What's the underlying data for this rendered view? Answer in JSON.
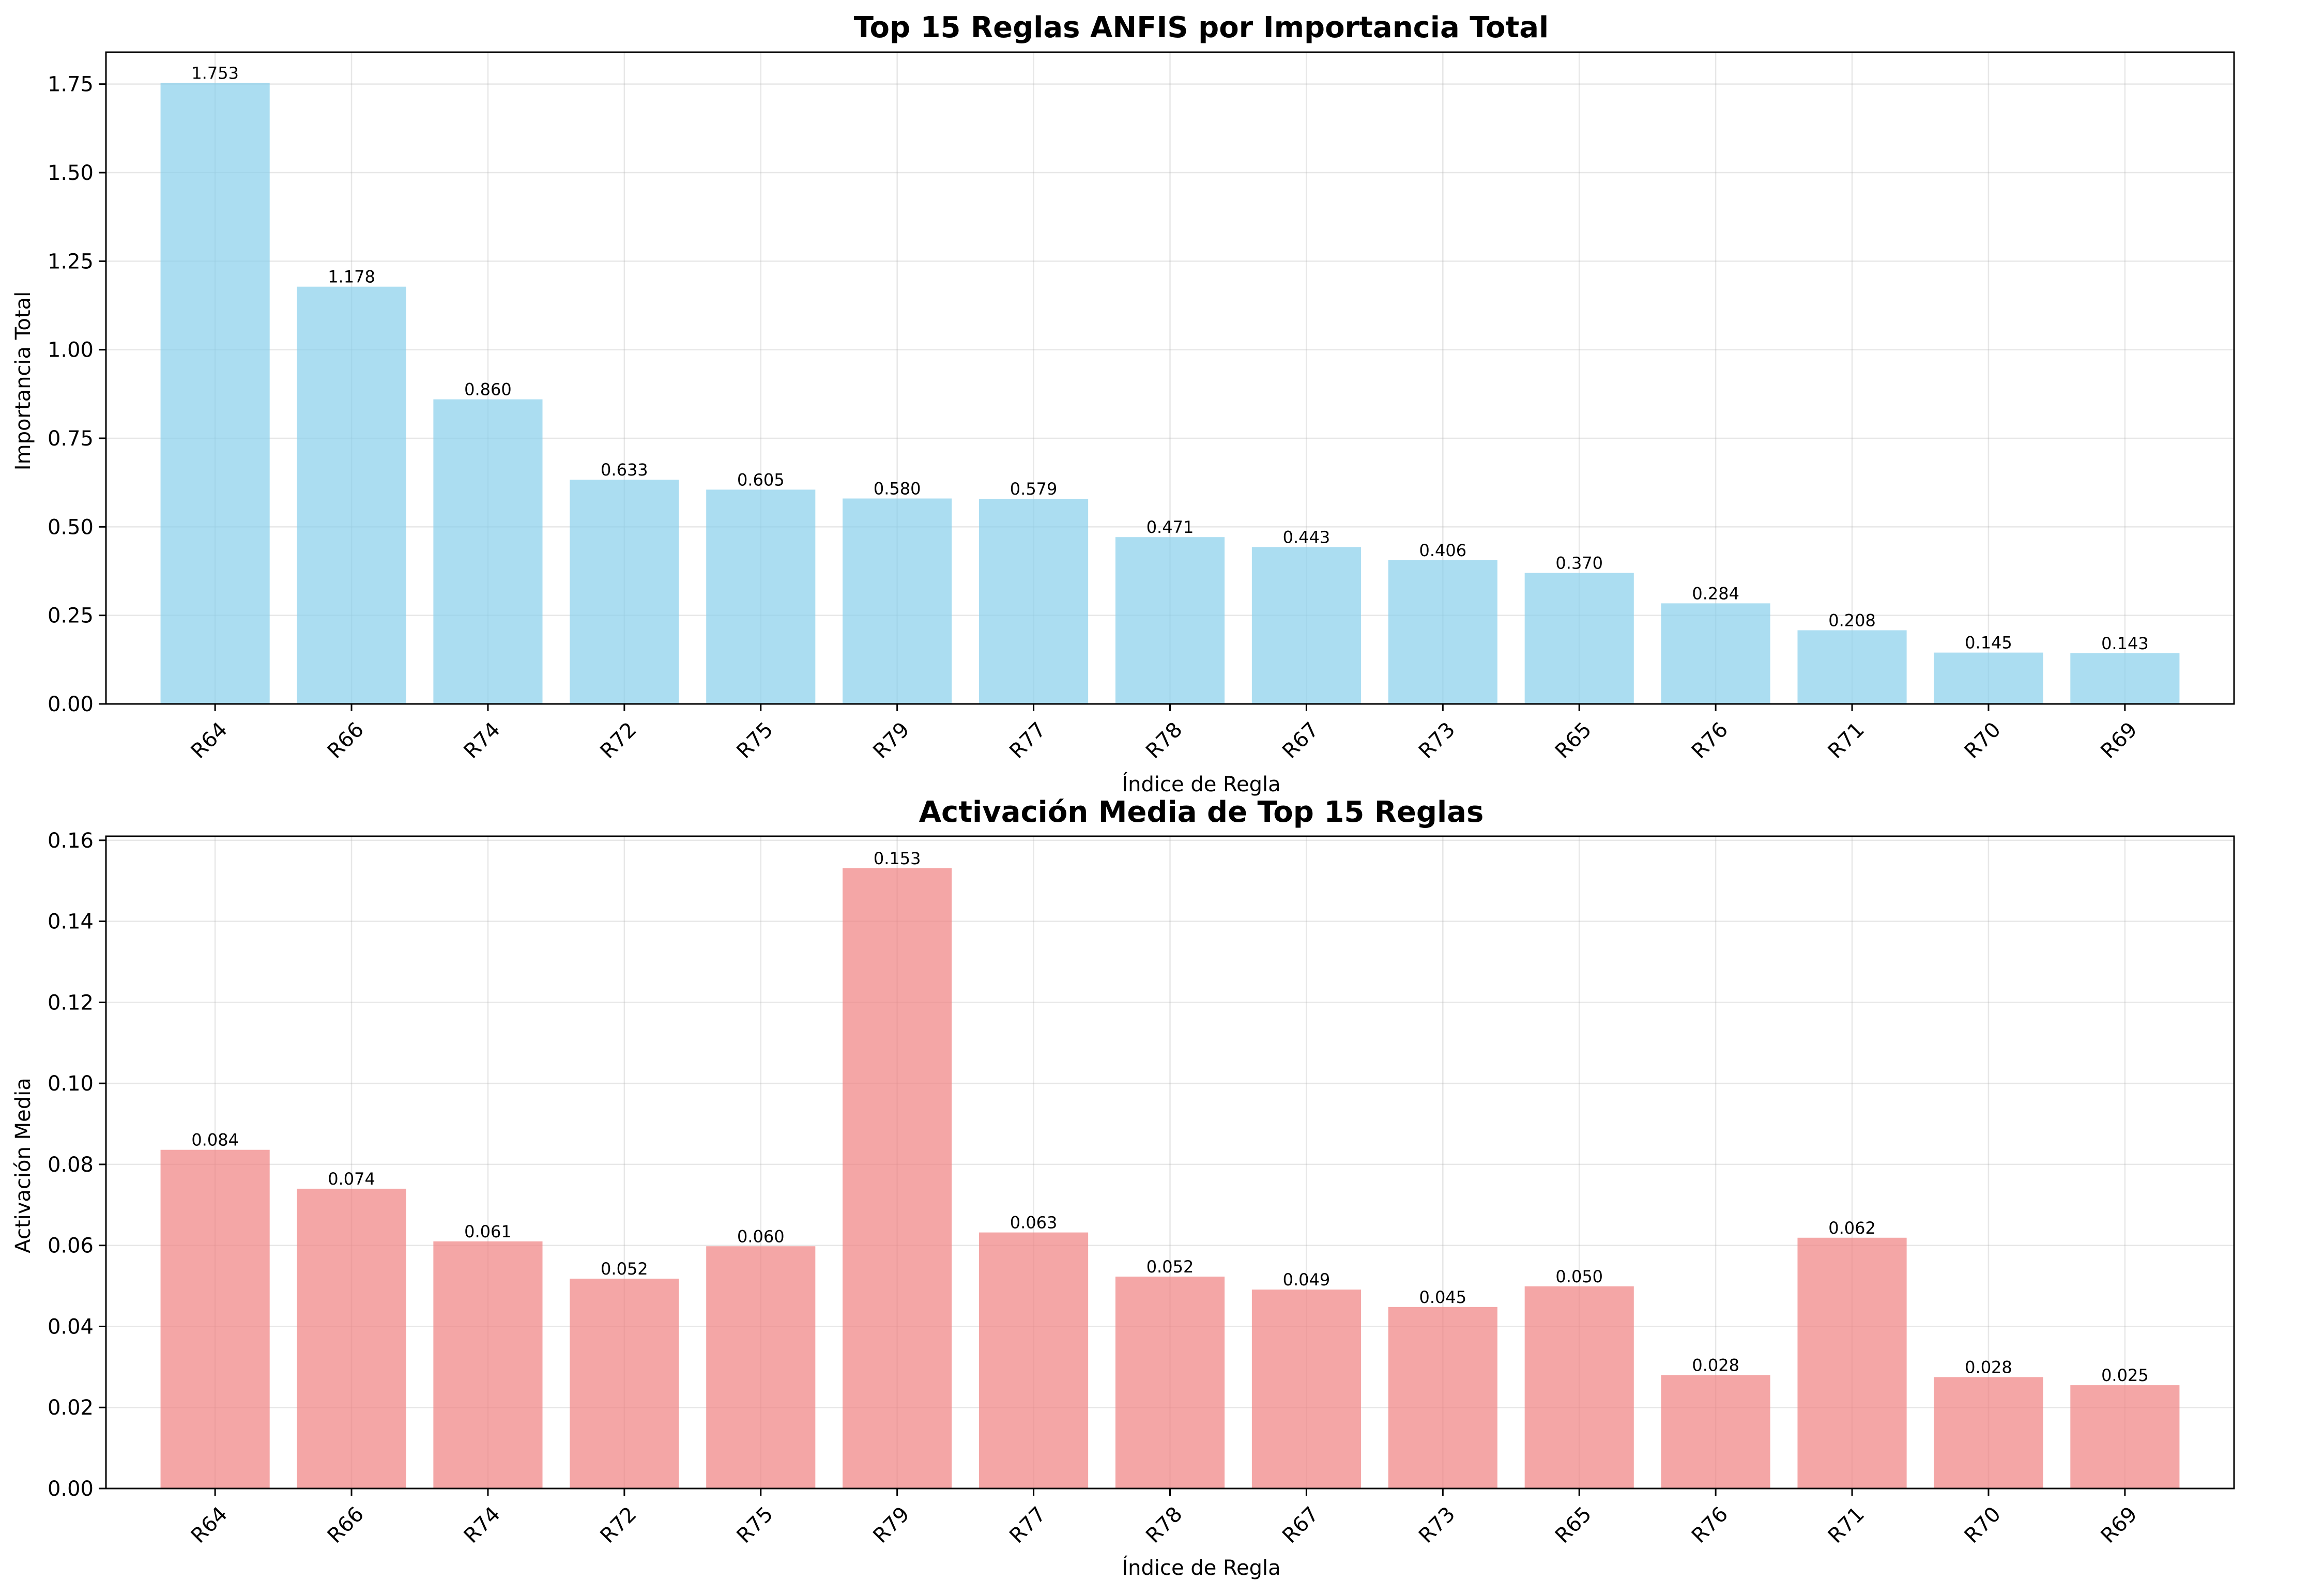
{
  "chart_data": [
    {
      "type": "bar",
      "title": "Top 15 Reglas ANFIS por Importancia Total",
      "xlabel": "Índice de Regla",
      "ylabel": "Importancia Total",
      "categories": [
        "R64",
        "R66",
        "R74",
        "R72",
        "R75",
        "R79",
        "R77",
        "R78",
        "R67",
        "R73",
        "R65",
        "R76",
        "R71",
        "R70",
        "R69"
      ],
      "values": [
        1.753,
        1.178,
        0.86,
        0.633,
        0.605,
        0.58,
        0.579,
        0.471,
        0.443,
        0.406,
        0.37,
        0.284,
        0.208,
        0.145,
        0.143
      ],
      "value_labels": [
        "1.753",
        "1.178",
        "0.860",
        "0.633",
        "0.605",
        "0.580",
        "0.579",
        "0.471",
        "0.443",
        "0.406",
        "0.370",
        "0.284",
        "0.208",
        "0.145",
        "0.143"
      ],
      "ylim": [
        0,
        1.84
      ],
      "yticks": [
        0,
        0.25,
        0.5,
        0.75,
        1.0,
        1.25,
        1.5,
        1.75
      ],
      "ytick_labels": [
        "0.00",
        "0.25",
        "0.50",
        "0.75",
        "1.00",
        "1.25",
        "1.50",
        "1.75"
      ],
      "bar_color": "#87ceeb",
      "grid": true
    },
    {
      "type": "bar",
      "title": "Activación Media de Top 15 Reglas",
      "xlabel": "Índice de Regla",
      "ylabel": "Activación Media",
      "categories": [
        "R64",
        "R66",
        "R74",
        "R72",
        "R75",
        "R79",
        "R77",
        "R78",
        "R67",
        "R73",
        "R65",
        "R76",
        "R71",
        "R70",
        "R69"
      ],
      "values": [
        0.0836,
        0.074,
        0.061,
        0.0518,
        0.0598,
        0.1531,
        0.0632,
        0.0523,
        0.0491,
        0.0448,
        0.0499,
        0.028,
        0.0619,
        0.0275,
        0.0255
      ],
      "value_labels": [
        "0.084",
        "0.074",
        "0.061",
        "0.052",
        "0.060",
        "0.153",
        "0.063",
        "0.052",
        "0.049",
        "0.045",
        "0.050",
        "0.028",
        "0.062",
        "0.028",
        "0.025"
      ],
      "ylim": [
        0,
        0.161
      ],
      "yticks": [
        0,
        0.02,
        0.04,
        0.06,
        0.08,
        0.1,
        0.12,
        0.14,
        0.16
      ],
      "ytick_labels": [
        "0.00",
        "0.02",
        "0.04",
        "0.06",
        "0.08",
        "0.10",
        "0.12",
        "0.14",
        "0.16"
      ],
      "bar_color": "#f08080",
      "grid": true
    }
  ]
}
